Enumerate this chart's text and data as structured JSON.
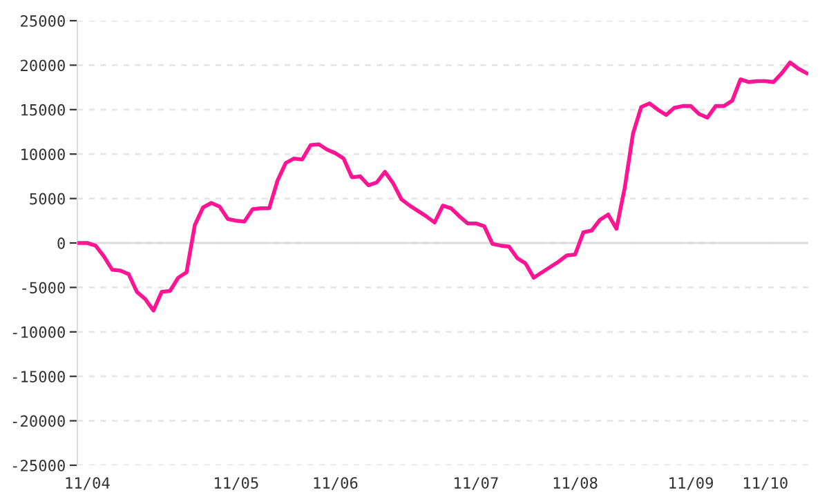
{
  "chart_data": {
    "type": "line",
    "categories": [
      null,
      "11/04",
      null,
      null,
      null,
      null,
      null,
      null,
      null,
      null,
      null,
      null,
      null,
      null,
      null,
      null,
      null,
      null,
      null,
      "11/05",
      null,
      null,
      null,
      null,
      null,
      null,
      null,
      null,
      null,
      null,
      null,
      "11/06",
      null,
      null,
      null,
      null,
      null,
      null,
      null,
      null,
      null,
      null,
      null,
      null,
      null,
      null,
      null,
      null,
      "11/07",
      null,
      null,
      null,
      null,
      null,
      null,
      null,
      null,
      null,
      null,
      null,
      "11/08",
      null,
      null,
      null,
      null,
      null,
      null,
      null,
      null,
      null,
      null,
      null,
      null,
      null,
      "11/09",
      null,
      null,
      null,
      null,
      null,
      null,
      null,
      null,
      "11/10",
      null,
      null,
      null,
      null,
      null
    ],
    "series": [
      {
        "color": "#ff1493",
        "values": [
          0,
          0,
          -300,
          -1500,
          -3000,
          -3100,
          -3500,
          -5500,
          -6300,
          -7600,
          -5500,
          -5400,
          -3900,
          -3300,
          2000,
          4000,
          4500,
          4100,
          2700,
          2500,
          2400,
          3800,
          3900,
          3900,
          7000,
          9000,
          9500,
          9400,
          11000,
          11100,
          10500,
          10100,
          9500,
          7400,
          7500,
          6500,
          6800,
          8000,
          6700,
          4900,
          4200,
          3600,
          3000,
          2300,
          4200,
          3900,
          3000,
          2200,
          2200,
          1900,
          -100,
          -300,
          -400,
          -1700,
          -2300,
          -3900,
          -3300,
          -2700,
          -2100,
          -1400,
          -1300,
          1200,
          1400,
          2600,
          3200,
          1600,
          6200,
          12300,
          15300,
          15700,
          15000,
          14400,
          15200,
          15400,
          15400,
          14500,
          14100,
          15400,
          15400,
          16000,
          18400,
          18100,
          18200,
          18200,
          18100,
          19100,
          20300,
          19600,
          19100
        ]
      }
    ],
    "ylim": [
      -25000,
      25000
    ],
    "yticks": [
      -25000,
      -20000,
      -15000,
      -10000,
      -5000,
      0,
      5000,
      10000,
      15000,
      20000,
      25000
    ],
    "grid": "y",
    "marker": "none",
    "line_style": "solid",
    "ref_lines": [
      {
        "axis": "y",
        "value": 0,
        "color": "#dddddd"
      }
    ]
  }
}
